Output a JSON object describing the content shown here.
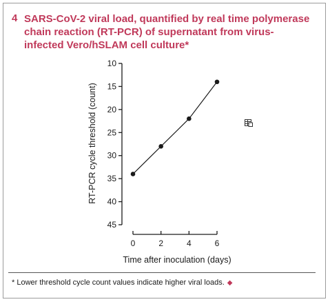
{
  "figure": {
    "number": "4",
    "title": "SARS-CoV-2 viral load, quantified by real time polymerase chain reaction (RT-PCR) of supernatant from virus-infected Vero/hSLAM cell culture*",
    "footnote": "* Lower threshold cycle count values indicate higher viral loads.",
    "footnote_mark": "◆",
    "accent_color": "#c0395a",
    "export_icon": "table-export-icon"
  },
  "chart_data": {
    "type": "line",
    "title": "",
    "xlabel": "Time after inoculation (days)",
    "ylabel": "RT-PCR cycle threshold (count)",
    "x": [
      0,
      2,
      4,
      6
    ],
    "series": [
      {
        "values": [
          34,
          28,
          22,
          14
        ]
      }
    ],
    "x_ticks": [
      0,
      2,
      4,
      6
    ],
    "y_ticks": [
      10,
      15,
      20,
      25,
      30,
      35,
      40,
      45
    ],
    "xlim": [
      0,
      6
    ],
    "ylim": [
      10,
      45
    ],
    "y_inverted": true,
    "grid": false,
    "legend": "none",
    "line_color": "#1a1a1a"
  }
}
